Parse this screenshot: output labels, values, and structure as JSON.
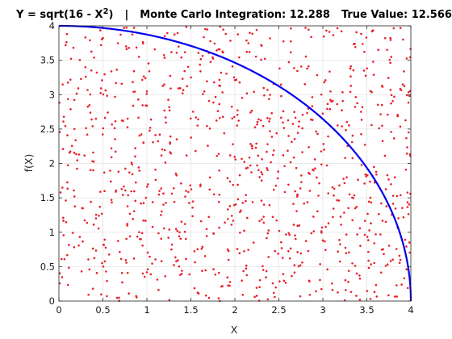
{
  "chart_data": {
    "type": "scatter",
    "title_parts": {
      "function": "Y = sqrt(16 - X",
      "exponent": "2",
      "close": ")",
      "separator": "|",
      "estimate": "Monte Carlo Integration: 12.288",
      "true_value": "True Value: 12.566"
    },
    "xlabel": "X",
    "ylabel": "f(X)",
    "xlim": [
      0,
      4
    ],
    "ylim": [
      0,
      4
    ],
    "xticks": [
      0,
      0.5,
      1,
      1.5,
      2,
      2.5,
      3,
      3.5,
      4
    ],
    "xtick_labels": [
      "0",
      "0.5",
      "1",
      "1.5",
      "2",
      "2.5",
      "3",
      "3.5",
      "4"
    ],
    "yticks": [
      0,
      0.5,
      1,
      1.5,
      2,
      2.5,
      3,
      3.5,
      4
    ],
    "ytick_labels": [
      "0",
      "0.5",
      "1",
      "1.5",
      "2",
      "2.5",
      "3",
      "3.5",
      "4"
    ],
    "grid": true,
    "series": [
      {
        "kind": "line",
        "function": "sqrt(16 - x^2)",
        "domain": [
          0,
          4
        ],
        "color": "#0000ee"
      },
      {
        "kind": "points",
        "distribution": "uniform over [0,4] x [0,4]",
        "count": 1000,
        "color": "#e8202a"
      }
    ]
  }
}
